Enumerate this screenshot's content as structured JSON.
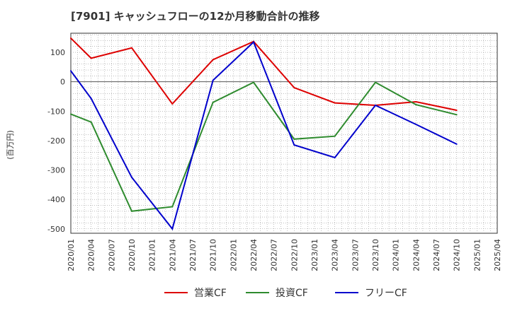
{
  "chart_data": {
    "type": "line",
    "title": "[7901]  キャッシュフローの12か月移動合計の推移",
    "xlabel": "",
    "ylabel": "(百万円)",
    "ylim": [
      -515,
      165
    ],
    "yticks": [
      100,
      0,
      -100,
      -200,
      -300,
      -400,
      -500
    ],
    "x": [
      "2020/01",
      "2020/04",
      "2020/07",
      "2020/10",
      "2021/01",
      "2021/04",
      "2021/07",
      "2021/10",
      "2022/01",
      "2022/04",
      "2022/07",
      "2022/10",
      "2023/01",
      "2023/04",
      "2023/07",
      "2023/10",
      "2024/01",
      "2024/04",
      "2024/07",
      "2024/10",
      "2025/01",
      "2025/04"
    ],
    "grid": true,
    "legend_position": "bottom-center",
    "series": [
      {
        "name": "営業CF",
        "color": "#dd0000",
        "points": [
          [
            "2020/01",
            148
          ],
          [
            "2020/04",
            80
          ],
          [
            "2020/10",
            115
          ],
          [
            "2021/04",
            -75
          ],
          [
            "2021/10",
            75
          ],
          [
            "2022/04",
            137
          ],
          [
            "2022/10",
            -20
          ],
          [
            "2023/04",
            -72
          ],
          [
            "2023/10",
            -80
          ],
          [
            "2024/04",
            -68
          ],
          [
            "2024/10",
            -97
          ]
        ]
      },
      {
        "name": "投資CF",
        "color": "#2e8b2e",
        "points": [
          [
            "2020/01",
            -110
          ],
          [
            "2020/04",
            -137
          ],
          [
            "2020/10",
            -440
          ],
          [
            "2021/04",
            -425
          ],
          [
            "2021/10",
            -70
          ],
          [
            "2022/04",
            -2
          ],
          [
            "2022/10",
            -195
          ],
          [
            "2023/04",
            -185
          ],
          [
            "2023/10",
            -2
          ],
          [
            "2024/04",
            -78
          ],
          [
            "2024/10",
            -112
          ]
        ]
      },
      {
        "name": "フリーCF",
        "color": "#0000cc",
        "points": [
          [
            "2020/01",
            37
          ],
          [
            "2020/04",
            -57
          ],
          [
            "2020/10",
            -325
          ],
          [
            "2021/04",
            -500
          ],
          [
            "2021/10",
            5
          ],
          [
            "2022/04",
            135
          ],
          [
            "2022/10",
            -215
          ],
          [
            "2023/04",
            -258
          ],
          [
            "2023/10",
            -80
          ],
          [
            "2024/04",
            -145
          ],
          [
            "2024/10",
            -212
          ]
        ]
      }
    ]
  }
}
